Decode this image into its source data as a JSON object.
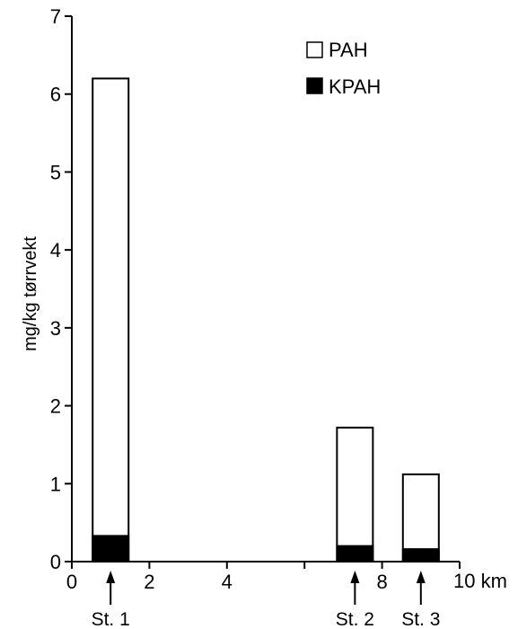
{
  "chart_data": {
    "type": "bar",
    "stacked": true,
    "ylabel": "mg/kg tørrvekt",
    "x_unit_label": "10 km",
    "xlim": [
      0,
      10
    ],
    "ylim": [
      0,
      7
    ],
    "x_ticks": [
      "0",
      "2",
      "4",
      "8"
    ],
    "y_ticks": [
      "0",
      "1",
      "2",
      "3",
      "4",
      "5",
      "6",
      "7"
    ],
    "legend_placement": "top-right",
    "grid": false,
    "stations": [
      {
        "label": "St. 1",
        "x": 1.0
      },
      {
        "label": "St. 2",
        "x": 7.3
      },
      {
        "label": "St. 3",
        "x": 9.0
      }
    ],
    "series": [
      {
        "name": "PAH",
        "color": "#ffffff",
        "values": [
          6.2,
          1.72,
          1.12
        ]
      },
      {
        "name": "KPAH",
        "color": "#000000",
        "values": [
          0.33,
          0.2,
          0.16
        ]
      }
    ]
  }
}
